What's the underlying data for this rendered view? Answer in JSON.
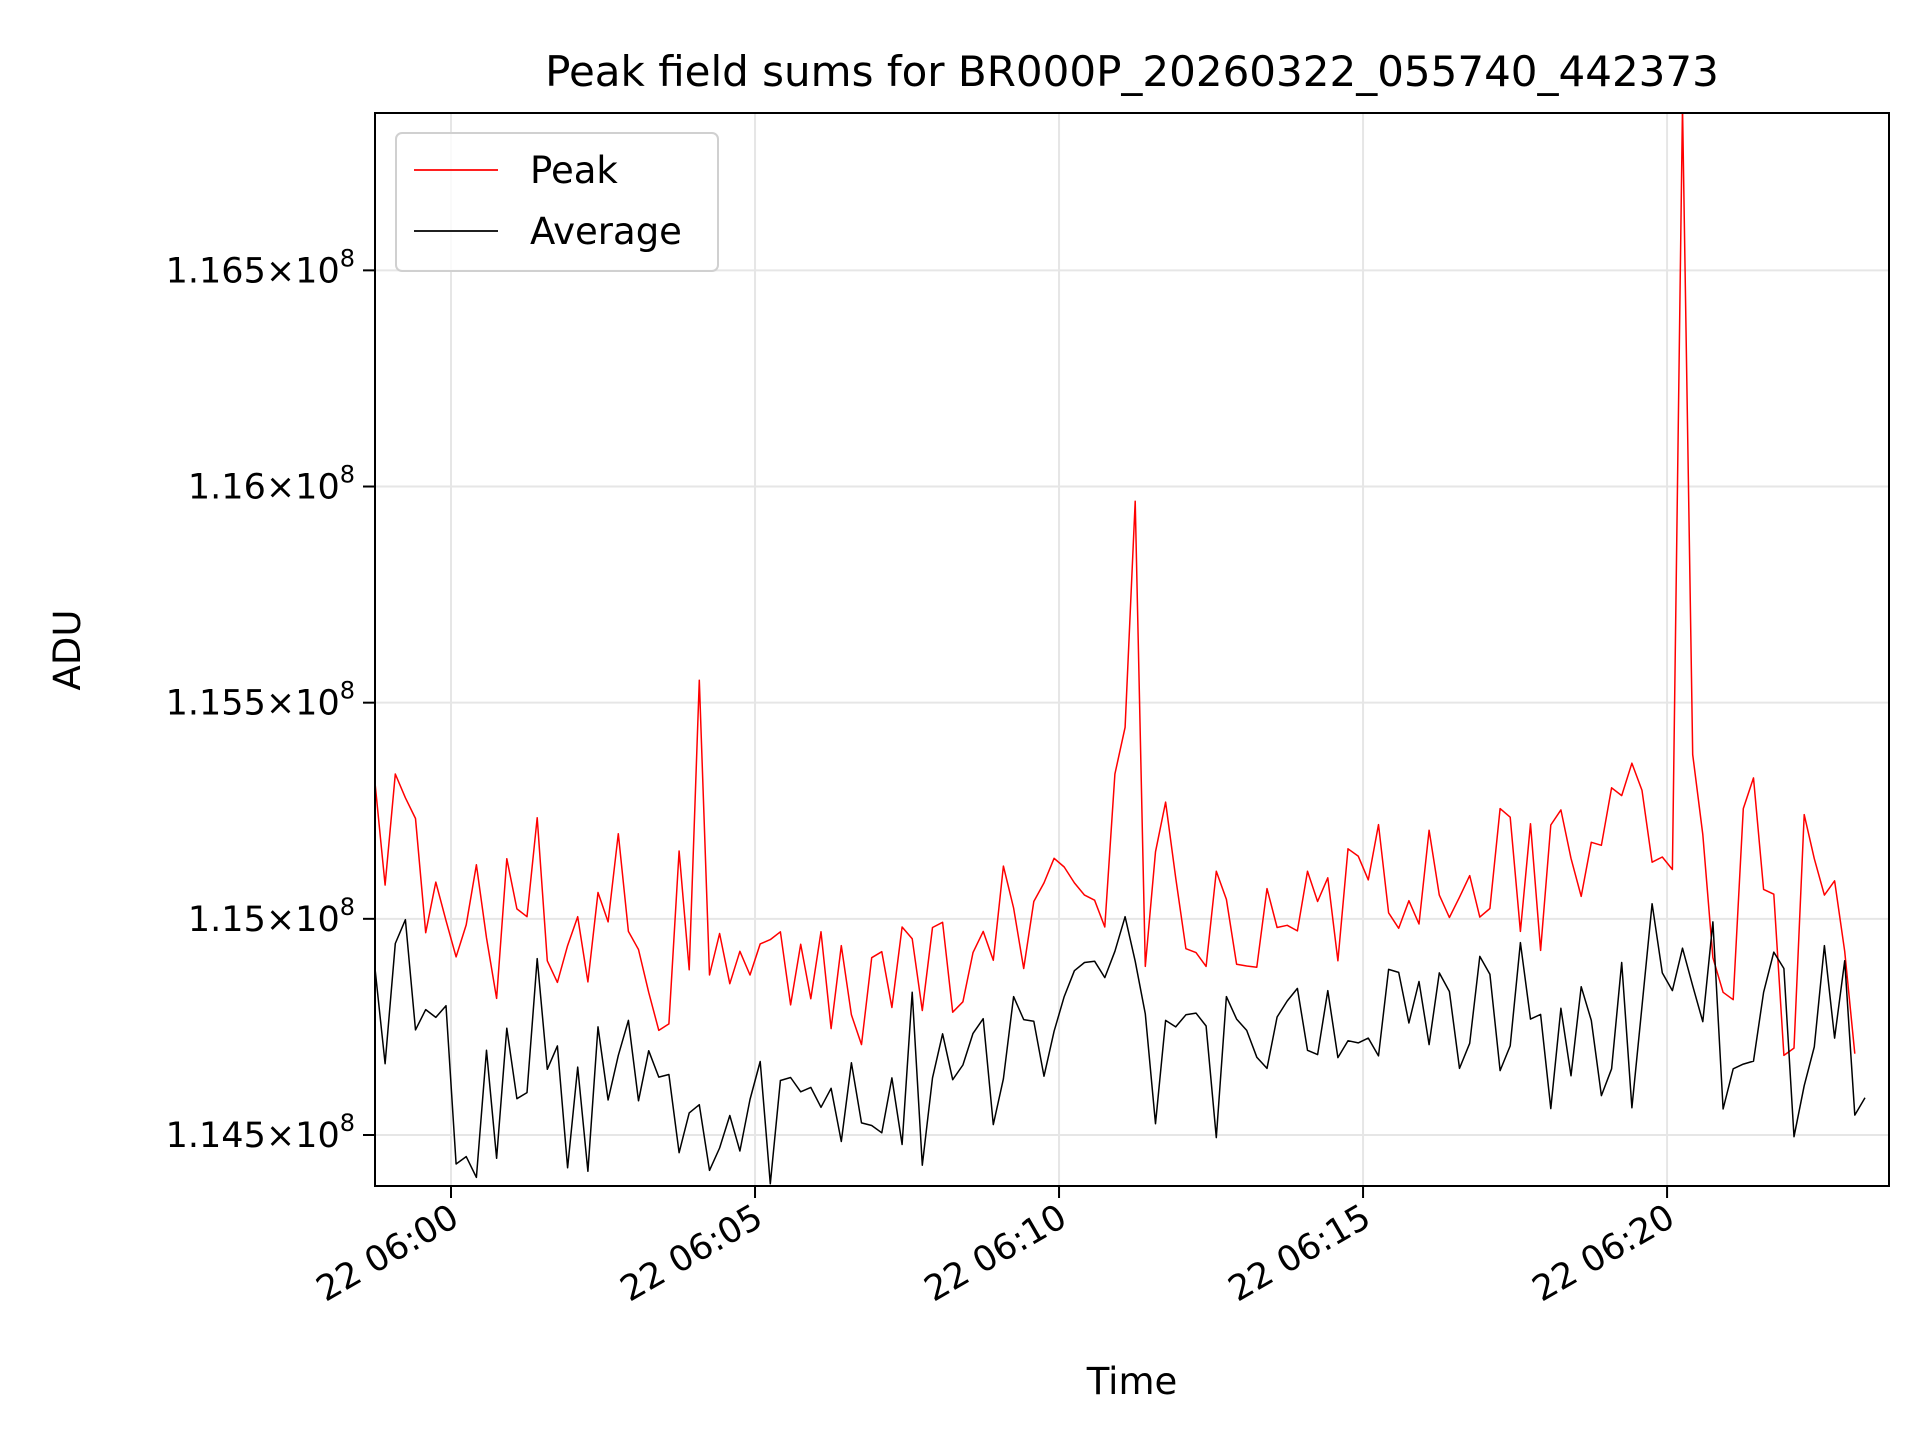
{
  "chart_data": {
    "type": "line",
    "title": "Peak field sums for BR000P_20260322_055740_442373",
    "xlabel": "Time",
    "ylabel": "ADU",
    "grid": true,
    "legend_position": "top-left",
    "x_range_minutes": [
      -1.25,
      23.65
    ],
    "x_axis_start": "2026-03-22 05:58:45",
    "x_ticks": [
      {
        "minute": 0,
        "label": "22 06:00"
      },
      {
        "minute": 5,
        "label": "22 06:05"
      },
      {
        "minute": 10,
        "label": "22 06:10"
      },
      {
        "minute": 15,
        "label": "22 06:15"
      },
      {
        "minute": 20,
        "label": "22 06:20"
      }
    ],
    "ylim": [
      114382000,
      116864000
    ],
    "y_ticks": [
      {
        "value": 114500000,
        "mantissa": "1.145",
        "base": "10",
        "exponent": "8"
      },
      {
        "value": 115000000,
        "mantissa": "1.15",
        "base": "10",
        "exponent": "8"
      },
      {
        "value": 115500000,
        "mantissa": "1.155",
        "base": "10",
        "exponent": "8"
      },
      {
        "value": 116000000,
        "mantissa": "1.16",
        "base": "10",
        "exponent": "8"
      },
      {
        "value": 116500000,
        "mantissa": "1.165",
        "base": "10",
        "exponent": "8"
      }
    ],
    "series": [
      {
        "name": "Peak",
        "color": "#ff0000",
        "x_start_minute": -1.25,
        "x_step_minute": 0.1667,
        "values": [
          115315000,
          115078000,
          115335000,
          115280000,
          115232000,
          114968000,
          115085000,
          114996000,
          114912000,
          114986000,
          115125000,
          114956000,
          114816000,
          115139000,
          115023000,
          115005000,
          115234000,
          114903000,
          114853000,
          114938000,
          115005000,
          114854000,
          115061000,
          114993000,
          115197000,
          114971000,
          114929000,
          114830000,
          114742000,
          114757000,
          115157000,
          114882000,
          115552000,
          114870000,
          114966000,
          114850000,
          114925000,
          114870000,
          114942000,
          114952000,
          114970000,
          114801000,
          114941000,
          114815000,
          114970000,
          114746000,
          114938000,
          114778000,
          114709000,
          114910000,
          114924000,
          114795000,
          114981000,
          114954000,
          114788000,
          114980000,
          114992000,
          114784000,
          114808000,
          114922000,
          114971000,
          114904000,
          115122000,
          115025000,
          114885000,
          115040000,
          115083000,
          115140000,
          115120000,
          115083000,
          115055000,
          115043000,
          114981000,
          115335000,
          115443000,
          115966000,
          114890000,
          115155000,
          115270000,
          115095000,
          114931000,
          114922000,
          114890000,
          115110000,
          115045000,
          114895000,
          114891000,
          114888000,
          115070000,
          114980000,
          114985000,
          114972000,
          115110000,
          115040000,
          115095000,
          114903000,
          115162000,
          115145000,
          115090000,
          115218000,
          115014000,
          114978000,
          115042000,
          114988000,
          115205000,
          115055000,
          115003000,
          115050000,
          115100000,
          115004000,
          115024000,
          115255000,
          115235000,
          114971000,
          115220000,
          114927000,
          115217000,
          115252000,
          115140000,
          115052000,
          115177000,
          115170000,
          115303000,
          115285000,
          115360000,
          115297000,
          115131000,
          115143000,
          115114000,
          116880000,
          115380000,
          115195000,
          114910000,
          114830000,
          114813000,
          115255000,
          115326000,
          115068000,
          115057000,
          114684000,
          114701000,
          115241000,
          115139000,
          115055000,
          115088000,
          114925000,
          114688000
        ]
      },
      {
        "name": "Average",
        "color": "#000000",
        "x_start_minute": -1.25,
        "x_step_minute": 0.1667,
        "values": [
          114885000,
          114665000,
          114943000,
          114998000,
          114743000,
          114790000,
          114772000,
          114799000,
          114433000,
          114450000,
          114402000,
          114696000,
          114446000,
          114747000,
          114584000,
          114598000,
          114908000,
          114652000,
          114706000,
          114424000,
          114657000,
          114416000,
          114750000,
          114581000,
          114684000,
          114765000,
          114579000,
          114695000,
          114634000,
          114640000,
          114459000,
          114551000,
          114570000,
          114418000,
          114470000,
          114545000,
          114463000,
          114582000,
          114670000,
          114387000,
          114626000,
          114633000,
          114600000,
          114610000,
          114564000,
          114608000,
          114485000,
          114667000,
          114528000,
          114522000,
          114505000,
          114632000,
          114478000,
          114830000,
          114430000,
          114632000,
          114734000,
          114628000,
          114662000,
          114735000,
          114769000,
          114524000,
          114630000,
          114820000,
          114767000,
          114763000,
          114636000,
          114740000,
          114820000,
          114880000,
          114899000,
          114902000,
          114864000,
          114925000,
          115005000,
          114902000,
          114780000,
          114526000,
          114765000,
          114750000,
          114778000,
          114782000,
          114752000,
          114494000,
          114820000,
          114768000,
          114742000,
          114680000,
          114654000,
          114773000,
          114810000,
          114839000,
          114696000,
          114686000,
          114834000,
          114679000,
          114718000,
          114713000,
          114724000,
          114683000,
          114883000,
          114876000,
          114759000,
          114855000,
          114709000,
          114875000,
          114832000,
          114654000,
          114712000,
          114913000,
          114872000,
          114649000,
          114706000,
          114945000,
          114768000,
          114779000,
          114561000,
          114793000,
          114637000,
          114843000,
          114765000,
          114591000,
          114653000,
          114899000,
          114563000,
          114798000,
          115035000,
          114875000,
          114834000,
          114932000,
          114845000,
          114762000,
          114993000,
          114560000,
          114653000,
          114664000,
          114671000,
          114830000,
          114923000,
          114885000,
          114496000,
          114614000,
          114704000,
          114938000,
          114724000,
          114903000,
          114546000,
          114586000
        ]
      }
    ]
  }
}
